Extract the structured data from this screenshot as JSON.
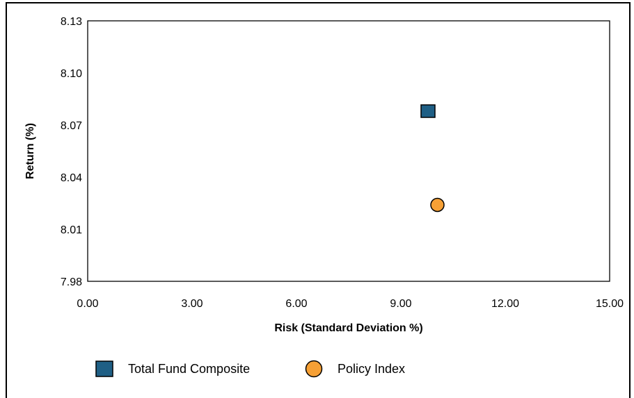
{
  "chart_data": {
    "type": "scatter",
    "title": "",
    "xlabel": "Risk (Standard Deviation %)",
    "ylabel": "Return (%)",
    "xlim": [
      0,
      15
    ],
    "ylim": [
      7.98,
      8.13
    ],
    "x_ticks": [
      "0.00",
      "3.00",
      "6.00",
      "9.00",
      "12.00",
      "15.00"
    ],
    "y_ticks": [
      "7.98",
      "8.01",
      "8.04",
      "8.07",
      "8.10",
      "8.13"
    ],
    "grid": false,
    "legend_position": "bottom",
    "series": [
      {
        "name": "Total Fund Composite",
        "marker": "square",
        "color": "#1f5f85",
        "points": [
          {
            "x": 9.78,
            "y": 8.078
          }
        ]
      },
      {
        "name": "Policy Index",
        "marker": "circle",
        "color": "#f6a035",
        "points": [
          {
            "x": 10.05,
            "y": 8.024
          }
        ]
      }
    ]
  }
}
